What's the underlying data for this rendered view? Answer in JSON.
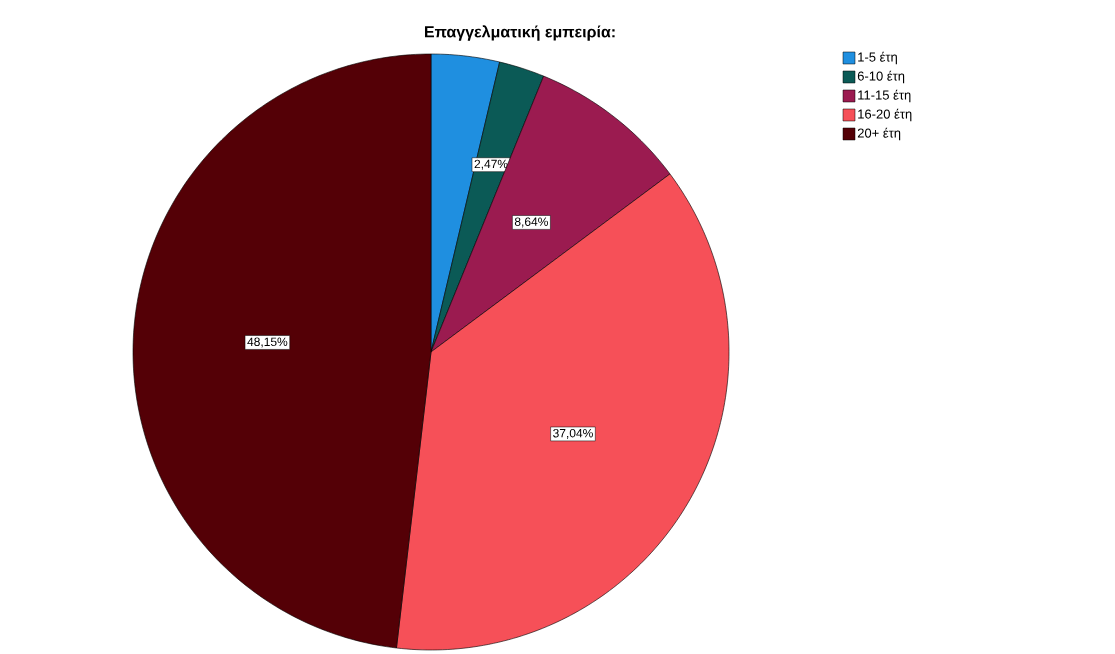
{
  "chart_data": {
    "type": "pie",
    "title": "Επαγγελματική εμπειρία:",
    "categories": [
      "1-5 έτη",
      "6-10 έτη",
      "11-15 έτη",
      "16-20 έτη",
      "20+ έτη"
    ],
    "values": [
      3.7,
      2.47,
      8.64,
      37.04,
      48.15
    ],
    "colors": [
      "#1f8fe0",
      "#0b5a56",
      "#9b1b50",
      "#f65058",
      "#540006"
    ],
    "value_labels": [
      null,
      "2,47%",
      "8,64%",
      "37,04%",
      "48,15%"
    ],
    "legend": "top right"
  }
}
